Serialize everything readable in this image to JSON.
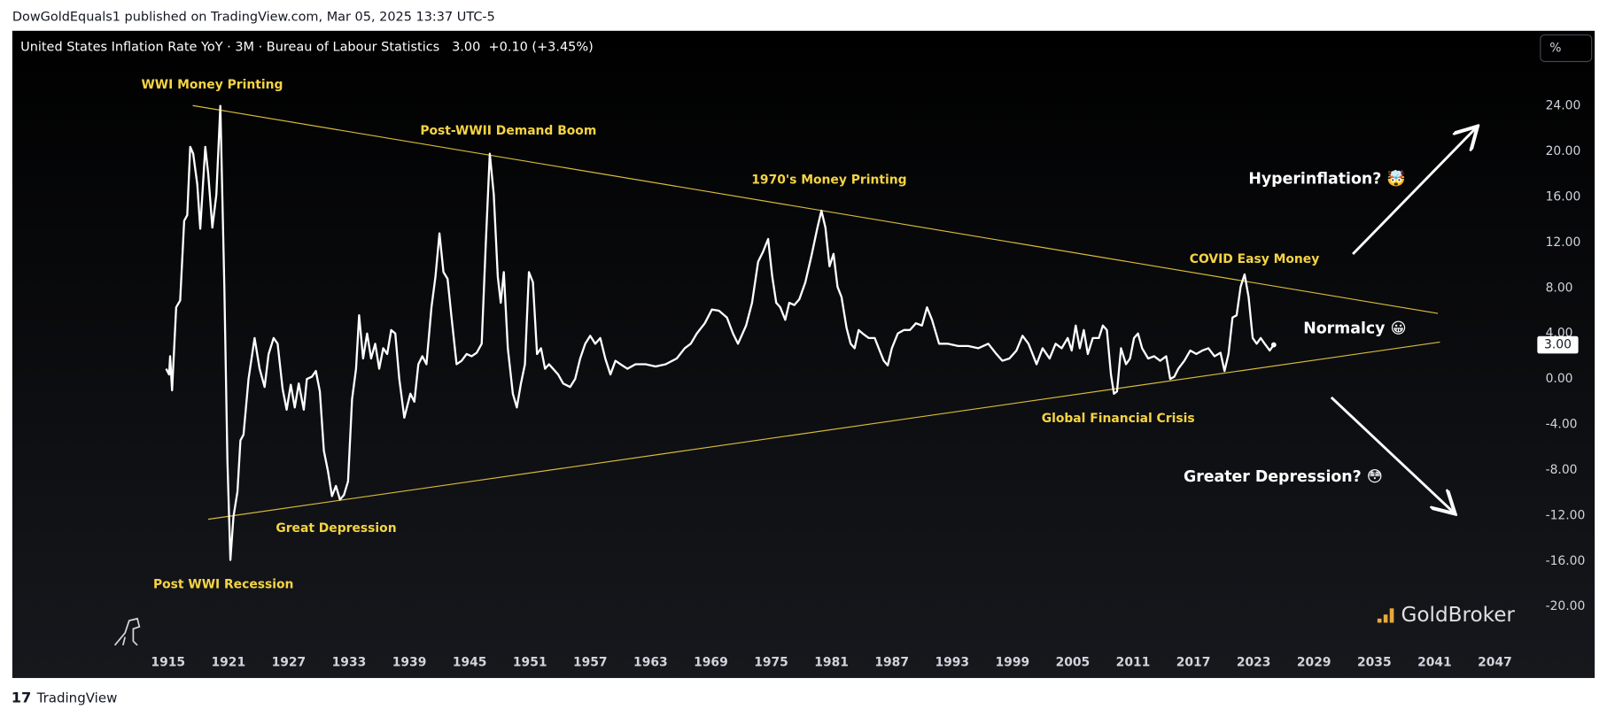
{
  "header": {
    "publisher": "DowGoldEquals1 published on TradingView.com, Mar 05, 2025 13:37 UTC-5",
    "footer": "TradingView"
  },
  "chart_data": {
    "type": "line",
    "title": "United States Inflation Rate YoY · 3M · Bureau of Labour Statistics",
    "last_value": {
      "value": 3,
      "label": "3.00"
    },
    "change": "+0.10 (+3.45%)",
    "unit_button": "%",
    "watermark": "GoldBroker",
    "color": "#ffffff",
    "trendline_color": "#d9bc3a",
    "annotations": [
      "WWI Money Printing",
      "Post-WWII Demand Boom",
      "1970's Money Printing",
      "COVID Easy Money",
      "Hyperinflation? 🤯",
      "Normalcy 😀",
      "Global Financial Crisis",
      "Greater Depression? 😳",
      "Great Depression",
      "Post WWI Recession"
    ],
    "x": [
      1914.8,
      1915.1,
      1915.2,
      1915.4,
      1915.8,
      1916.2,
      1916.6,
      1916.9,
      1917.2,
      1917.5,
      1917.9,
      1918.2,
      1918.7,
      1919.0,
      1919.4,
      1919.8,
      1920.2,
      1920.6,
      1920.9,
      1921.2,
      1921.5,
      1921.9,
      1922.2,
      1922.5,
      1923.0,
      1923.6,
      1924.1,
      1924.6,
      1925.0,
      1925.5,
      1925.9,
      1926.4,
      1926.8,
      1927.2,
      1927.6,
      1928.0,
      1928.5,
      1928.8,
      1929.3,
      1929.7,
      1930.1,
      1930.5,
      1930.9,
      1931.3,
      1931.7,
      1932.1,
      1932.5,
      1932.9,
      1933.3,
      1933.7,
      1934.0,
      1934.4,
      1934.8,
      1935.2,
      1935.6,
      1936.0,
      1936.4,
      1936.8,
      1937.2,
      1937.6,
      1938.0,
      1938.5,
      1939.1,
      1939.5,
      1939.9,
      1940.3,
      1940.7,
      1941.2,
      1941.6,
      1942.0,
      1942.4,
      1942.8,
      1943.2,
      1943.7,
      1944.2,
      1944.7,
      1945.2,
      1945.7,
      1946.2,
      1946.6,
      1947.0,
      1947.4,
      1947.8,
      1948.1,
      1948.4,
      1948.8,
      1949.3,
      1949.7,
      1950.1,
      1950.5,
      1950.9,
      1951.3,
      1951.7,
      1952.1,
      1952.5,
      1952.9,
      1953.3,
      1953.8,
      1954.3,
      1955.0,
      1955.5,
      1956.0,
      1956.5,
      1957.0,
      1957.5,
      1958.0,
      1958.5,
      1959.0,
      1959.5,
      1960.0,
      1960.7,
      1961.5,
      1962.5,
      1963.5,
      1964.5,
      1965.6,
      1966.4,
      1967.0,
      1967.6,
      1968.4,
      1969.1,
      1969.8,
      1970.6,
      1971.2,
      1971.7,
      1972.5,
      1973.1,
      1973.7,
      1974.2,
      1974.7,
      1975.1,
      1975.5,
      1975.9,
      1976.4,
      1976.8,
      1977.3,
      1977.8,
      1978.4,
      1979.0,
      1979.6,
      1980.0,
      1980.4,
      1980.8,
      1981.2,
      1981.6,
      1982.0,
      1982.5,
      1982.9,
      1983.3,
      1983.7,
      1984.1,
      1984.7,
      1985.3,
      1985.7,
      1986.2,
      1986.6,
      1987.0,
      1987.6,
      1988.2,
      1988.8,
      1989.4,
      1990.0,
      1990.5,
      1991.0,
      1991.7,
      1992.6,
      1993.6,
      1994.6,
      1995.6,
      1996.6,
      1997.4,
      1998.0,
      1998.7,
      1999.4,
      2000.0,
      2000.6,
      2001.0,
      2001.4,
      2002.0,
      2002.7,
      2003.3,
      2003.9,
      2004.5,
      2004.9,
      2005.3,
      2005.7,
      2006.1,
      2006.5,
      2007.0,
      2007.6,
      2008.0,
      2008.4,
      2008.8,
      2009.1,
      2009.4,
      2009.8,
      2010.3,
      2010.7,
      2011.1,
      2011.5,
      2011.9,
      2012.5,
      2013.1,
      2013.7,
      2014.3,
      2014.7,
      2015.1,
      2015.5,
      2016.1,
      2016.7,
      2017.3,
      2017.9,
      2018.5,
      2019.1,
      2019.7,
      2020.1,
      2020.5,
      2020.9,
      2021.3,
      2021.7,
      2022.1,
      2022.5,
      2022.9,
      2023.3,
      2023.7,
      2024.1,
      2024.6,
      2025.0
    ],
    "values": [
      0.9,
      0.4,
      2.0,
      -1.0,
      6.3,
      6.9,
      13.9,
      14.4,
      20.4,
      19.8,
      17.1,
      13.2,
      20.4,
      18.0,
      13.3,
      16.2,
      24.0,
      8.1,
      -7.2,
      -15.9,
      -12.1,
      -9.9,
      -5.4,
      -4.9,
      0.0,
      3.6,
      0.9,
      -0.7,
      2.2,
      3.6,
      3.1,
      -0.9,
      -2.7,
      -0.5,
      -2.5,
      -0.4,
      -2.7,
      0.0,
      0.2,
      0.7,
      -1.1,
      -6.3,
      -8.1,
      -10.3,
      -9.4,
      -10.6,
      -10.2,
      -9.0,
      -1.8,
      0.9,
      5.6,
      1.8,
      4.0,
      1.8,
      3.1,
      0.9,
      2.7,
      2.2,
      4.3,
      4.0,
      0.0,
      -3.4,
      -1.3,
      -2.0,
      1.3,
      2.0,
      1.3,
      6.3,
      9.0,
      12.8,
      9.4,
      8.8,
      5.4,
      1.3,
      1.6,
      2.2,
      2.0,
      2.3,
      3.1,
      11.7,
      19.8,
      16.2,
      9.0,
      6.7,
      9.4,
      2.7,
      -1.3,
      -2.5,
      -0.4,
      1.3,
      9.4,
      8.5,
      2.2,
      2.7,
      0.9,
      1.3,
      0.9,
      0.4,
      -0.4,
      -0.7,
      0.0,
      1.8,
      3.1,
      3.8,
      3.1,
      3.6,
      1.8,
      0.4,
      1.6,
      1.3,
      0.9,
      1.3,
      1.3,
      1.1,
      1.3,
      1.8,
      2.7,
      3.1,
      4.0,
      4.9,
      6.1,
      6.0,
      5.4,
      4.0,
      3.1,
      4.7,
      6.7,
      10.3,
      11.2,
      12.3,
      9.0,
      6.7,
      6.3,
      5.2,
      6.7,
      6.5,
      7.0,
      8.5,
      10.8,
      13.3,
      14.8,
      13.3,
      9.9,
      11.0,
      8.1,
      7.2,
      4.5,
      3.1,
      2.7,
      4.3,
      4.0,
      3.6,
      3.6,
      2.7,
      1.6,
      1.2,
      2.7,
      4.0,
      4.3,
      4.3,
      4.9,
      4.7,
      6.3,
      5.2,
      3.1,
      3.1,
      2.9,
      2.9,
      2.7,
      3.1,
      2.2,
      1.6,
      1.8,
      2.5,
      3.8,
      3.1,
      2.2,
      1.3,
      2.7,
      1.8,
      3.1,
      2.7,
      3.6,
      2.5,
      4.7,
      2.7,
      4.3,
      2.2,
      3.6,
      3.6,
      4.7,
      4.3,
      0.4,
      -1.3,
      -1.1,
      2.7,
      1.3,
      1.8,
      3.6,
      4.0,
      2.7,
      1.8,
      2.0,
      1.6,
      2.0,
      0.0,
      0.2,
      0.9,
      1.6,
      2.5,
      2.2,
      2.5,
      2.7,
      2.0,
      2.3,
      0.7,
      2.2,
      5.4,
      5.6,
      8.1,
      9.2,
      7.2,
      3.6,
      3.1,
      3.6,
      3.1,
      2.5,
      3.0
    ],
    "xlim": [
      1899.5,
      2050.2
    ],
    "xticks": [
      1915,
      1921,
      1927,
      1933,
      1939,
      1945,
      1951,
      1957,
      1963,
      1969,
      1975,
      1981,
      1987,
      1993,
      1999,
      2005,
      2011,
      2017,
      2023,
      2029,
      2035,
      2041,
      2047
    ],
    "ylim": [
      -26.1,
      30.6
    ],
    "yticks": [
      {
        "value": 24,
        "label": "24.00"
      },
      {
        "value": 20,
        "label": "20.00"
      },
      {
        "value": 16,
        "label": "16.00"
      },
      {
        "value": 12,
        "label": "12.00"
      },
      {
        "value": 8,
        "label": "8.00"
      },
      {
        "value": 4,
        "label": "4.00"
      },
      {
        "value": 0,
        "label": "0.00"
      },
      {
        "value": -4,
        "label": "-4.00"
      },
      {
        "value": -8,
        "label": "-8.00"
      },
      {
        "value": -12,
        "label": "-12.00"
      },
      {
        "value": -16,
        "label": "-16.00"
      },
      {
        "value": -20,
        "label": "-20.00"
      }
    ],
    "grid": false
  }
}
